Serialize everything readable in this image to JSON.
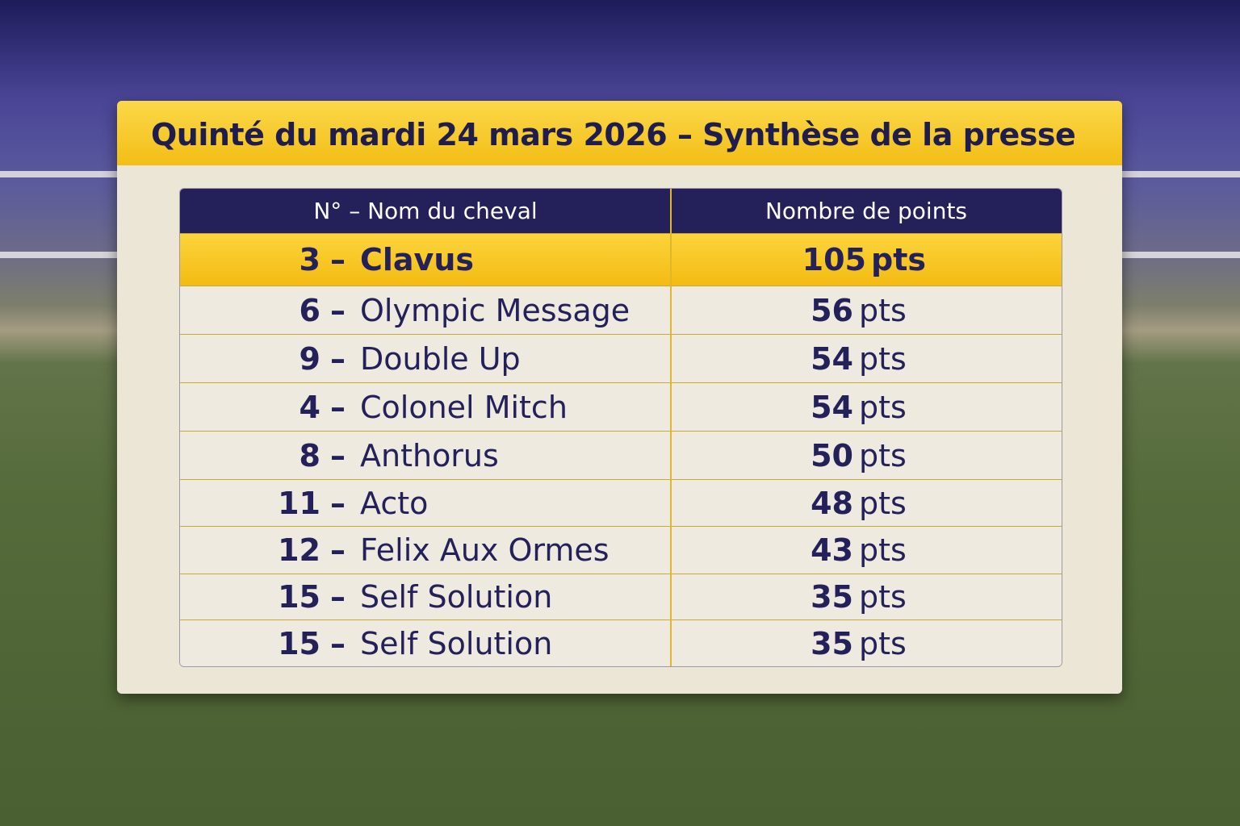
{
  "header": {
    "title": "Quinté du mardi 24 mars 2026 – Synthèse de la presse"
  },
  "table": {
    "columns": [
      "N° – Nom du cheval",
      "Nombre de points"
    ],
    "rows": [
      [
        "3",
        "–",
        "Clavus",
        "105",
        "pts"
      ],
      [
        "6",
        "–",
        "Olympic Message",
        "56",
        "pts"
      ],
      [
        "9",
        "–",
        "Double Up",
        "54",
        "pts"
      ],
      [
        "4",
        "–",
        "Colonel Mitch",
        "54",
        "pts"
      ],
      [
        "8",
        "–",
        "Anthorus",
        "50",
        "pts"
      ],
      [
        "11",
        "–",
        "Acto",
        "48",
        "pts"
      ],
      [
        "12",
        "–",
        "Felix Aux Ormes",
        "43",
        "pts"
      ],
      [
        "15",
        "–",
        "Self Solution",
        "35",
        "pts"
      ],
      [
        "15",
        "–",
        "Self Solution",
        "35",
        "pts"
      ]
    ]
  }
}
